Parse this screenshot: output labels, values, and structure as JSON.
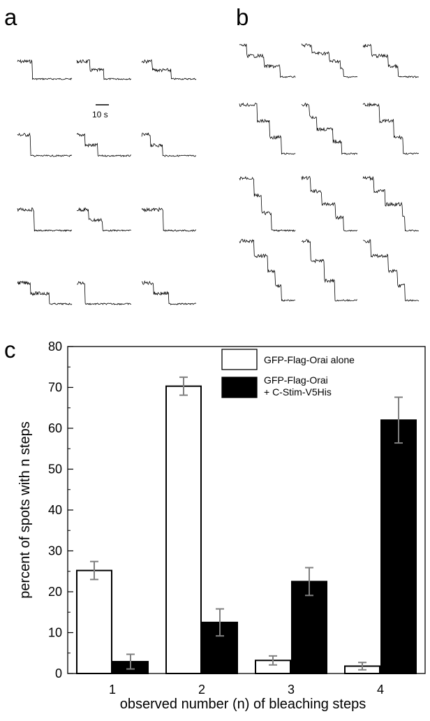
{
  "panels": {
    "a": "a",
    "b": "b",
    "c": "c"
  },
  "scale_bar": {
    "label": "10 s"
  },
  "traces": {
    "panel_a": [
      {
        "steps": 1
      },
      {
        "steps": 2
      },
      {
        "steps": 2
      },
      {
        "steps": 1
      },
      {
        "steps": 2
      },
      {
        "steps": 2
      },
      {
        "steps": 1
      },
      {
        "steps": 2
      },
      {
        "steps": 1
      },
      {
        "steps": 2
      },
      {
        "steps": 1
      },
      {
        "steps": 2
      }
    ],
    "panel_b": [
      {
        "steps": 3
      },
      {
        "steps": 4
      },
      {
        "steps": 3
      },
      {
        "steps": 3
      },
      {
        "steps": 4
      },
      {
        "steps": 3
      },
      {
        "steps": 3
      },
      {
        "steps": 4
      },
      {
        "steps": 4
      },
      {
        "steps": 4
      },
      {
        "steps": 3
      },
      {
        "steps": 4
      }
    ]
  },
  "chart_data": {
    "type": "bar",
    "xlabel": "observed number (n) of bleaching steps",
    "ylabel": "percent of spots with n steps",
    "categories": [
      "1",
      "2",
      "3",
      "4"
    ],
    "ylim": [
      0,
      80
    ],
    "yticks": [
      0,
      10,
      20,
      30,
      40,
      50,
      60,
      70,
      80
    ],
    "series": [
      {
        "name": "GFP-Flag-Orai alone",
        "fill": "#ffffff",
        "values": [
          25.2,
          70.3,
          3.2,
          1.8
        ],
        "errors": [
          2.2,
          2.2,
          1.1,
          0.9
        ]
      },
      {
        "name": "GFP-Flag-Orai\n+ C-Stim-V5His",
        "fill": "#000000",
        "values": [
          2.9,
          12.5,
          22.5,
          62.0
        ],
        "errors": [
          1.8,
          3.3,
          3.4,
          5.6
        ]
      }
    ],
    "legend_position": "top-right",
    "error_bar_color": "#808080"
  }
}
